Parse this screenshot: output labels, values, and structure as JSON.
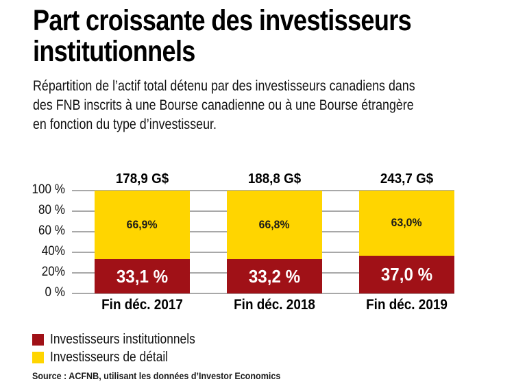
{
  "header": {
    "title_lines": [
      "Part croissante des investisseurs",
      "institutionnels"
    ],
    "subtitle_lines": [
      "Répartition de l’actif total détenu par des investisseurs canadiens dans",
      "des FNB inscrits à une Bourse canadienne ou à une Bourse étrangère",
      "en fonction du type d’investisseur."
    ]
  },
  "chart_data": {
    "type": "bar",
    "stacked": true,
    "grid": true,
    "legend_position": "bottom-left",
    "title": "Part croissante des investisseurs institutionnels",
    "subtitle": "Répartition de l’actif total détenu par des investisseurs canadiens dans des FNB inscrits à une Bourse canadienne ou à une Bourse étrangère en fonction du type d’investisseur.",
    "ylim": [
      0,
      100
    ],
    "y_ticks": [
      "100 %",
      "80 %",
      "60 %",
      "40%",
      "20%",
      "0 %"
    ],
    "categories": [
      "Fin déc. 2017",
      "Fin déc. 2018",
      "Fin déc. 2019"
    ],
    "totals_labels": [
      "178,9 G$",
      "188,8 G$",
      "243,7 G$"
    ],
    "totals_billions_cad": [
      178.9,
      188.8,
      243.7
    ],
    "series": [
      {
        "name": "Investisseurs institutionnels",
        "color": "#A01117",
        "values": [
          33.1,
          33.2,
          37.0
        ],
        "labels": [
          "33,1 %",
          "33,2 %",
          "37,0 %"
        ]
      },
      {
        "name": "Investisseurs de détail",
        "color": "#FFD500",
        "values": [
          66.9,
          66.8,
          63.0
        ],
        "labels": [
          "66,9%",
          "66,8%",
          "63,0%"
        ]
      }
    ],
    "colors": {
      "gridline": "#A8A8A8",
      "institutional_label_text": "#FFFFFF",
      "retail_label_text": "#1A1A1A"
    }
  },
  "source": "Source : ACFNB, utilisant les données d’Investor Economics"
}
